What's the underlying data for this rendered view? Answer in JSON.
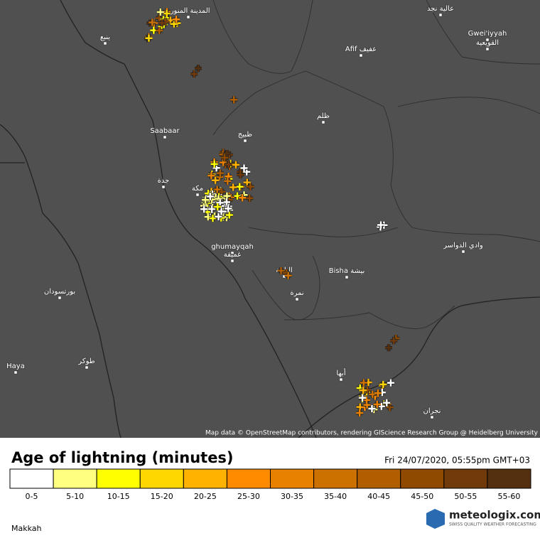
{
  "map": {
    "places": [
      "المدينة المنورة",
      "ينبع",
      "Afif عفيف",
      "Gwei'iyyah",
      "القويعية",
      "عالية نجد",
      "ظلم",
      "Saabaar",
      "ظبيج",
      "جدة",
      "مكة",
      "ghumayqah",
      "غميقة",
      "وادي الدواسر",
      "Bisha بيشة",
      "الباحة",
      "نمرة",
      "بورتسودان",
      "طوكر",
      "Haya",
      "أبها",
      "نجران"
    ],
    "attribution": "Map data © OpenStreetMap contributors, rendering GIScience Research Group @ Heidelberg University"
  },
  "legend": {
    "title": "Age of lightning (minutes)",
    "timestamp": "Fri 24/07/2020, 05:55pm GMT+03",
    "bins": [
      {
        "label": "0-5",
        "color": "#ffffff"
      },
      {
        "label": "5-10",
        "color": "#ffff80"
      },
      {
        "label": "10-15",
        "color": "#ffff00"
      },
      {
        "label": "15-20",
        "color": "#ffd700"
      },
      {
        "label": "20-25",
        "color": "#ffb300"
      },
      {
        "label": "25-30",
        "color": "#ff8c00"
      },
      {
        "label": "30-35",
        "color": "#e88000"
      },
      {
        "label": "35-40",
        "color": "#cc7000"
      },
      {
        "label": "40-45",
        "color": "#b05e00"
      },
      {
        "label": "45-50",
        "color": "#904a00"
      },
      {
        "label": "50-55",
        "color": "#703a0a"
      },
      {
        "label": "55-60",
        "color": "#553010"
      }
    ]
  },
  "footer": {
    "region": "Makkah",
    "brand": "meteologix.com",
    "tagline": "SWISS QUALITY WEATHER FORECASTING"
  }
}
